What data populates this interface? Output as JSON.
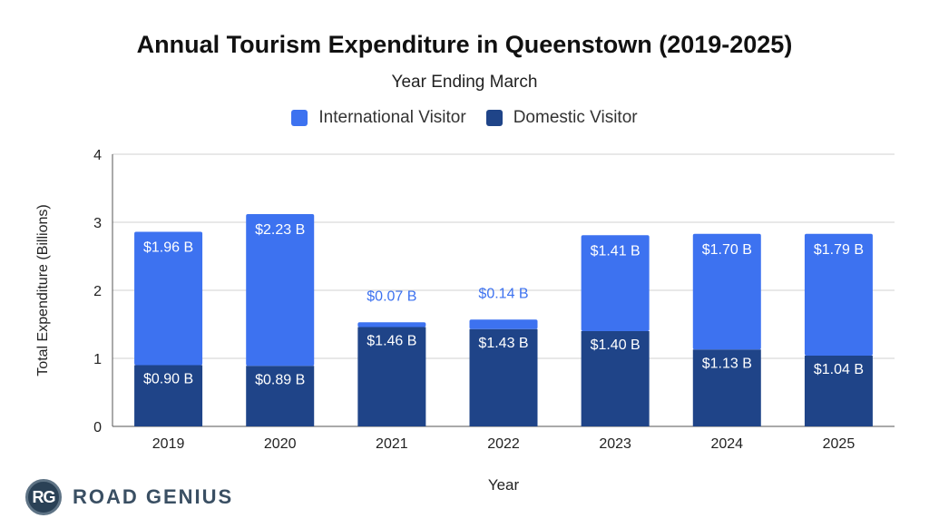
{
  "chart_data": {
    "type": "bar",
    "stacked": true,
    "title": "Annual Tourism Expenditure in Queenstown (2019-2025)",
    "subtitle": "Year Ending March",
    "xlabel": "Year",
    "ylabel": "Total Expenditure (Billions)",
    "ylim": [
      0,
      4
    ],
    "yticks": [
      0,
      1,
      2,
      3,
      4
    ],
    "grid": true,
    "legend_position": "top-center",
    "categories": [
      "2019",
      "2020",
      "2021",
      "2022",
      "2023",
      "2024",
      "2025"
    ],
    "series": [
      {
        "name": "Domestic Visitor",
        "color": "#1f4488",
        "values": [
          0.9,
          0.89,
          1.46,
          1.43,
          1.4,
          1.13,
          1.04
        ],
        "labels": [
          "$0.90 B",
          "$0.89 B",
          "$1.46 B",
          "$1.43 B",
          "$1.40 B",
          "$1.13 B",
          "$1.04 B"
        ]
      },
      {
        "name": "International Visitor",
        "color": "#3d72f0",
        "values": [
          1.96,
          2.23,
          0.07,
          0.14,
          1.41,
          1.7,
          1.79
        ],
        "labels": [
          "$1.96 B",
          "$2.23 B",
          "$0.07 B",
          "$0.14 B",
          "$1.41 B",
          "$1.70 B",
          "$1.79 B"
        ]
      }
    ]
  },
  "legend": {
    "international_label": "International Visitor",
    "domestic_label": "Domestic Visitor",
    "international_color": "#3d72f0",
    "domestic_color": "#1f4488"
  },
  "brand": {
    "badge_text": "RG",
    "name": "ROAD GENIUS"
  }
}
